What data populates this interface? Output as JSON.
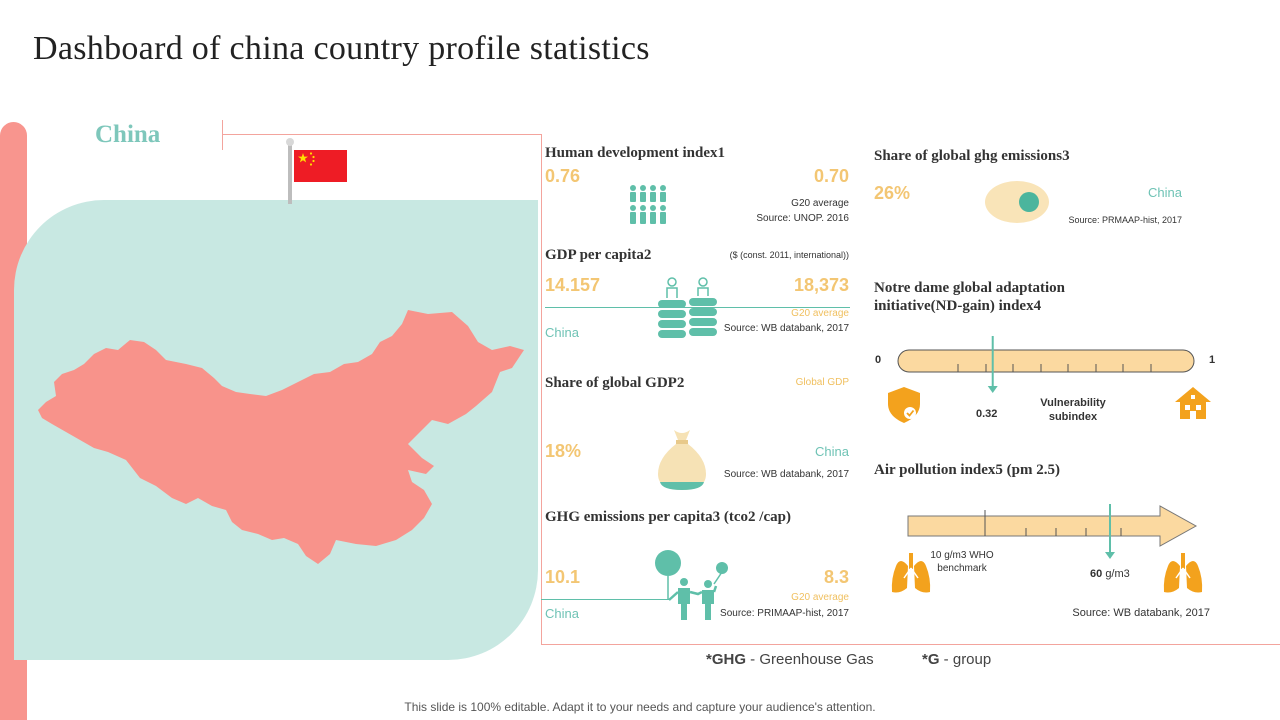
{
  "title": "Dashboard of china country profile statistics",
  "country": "China",
  "hdi": {
    "title": "Human development index1",
    "value": "0.76",
    "g20_value": "0.70",
    "g20_label": "G20 average",
    "source": "Source: UNOP.  2016"
  },
  "gdp_per_capita": {
    "title": "GDP per capita2",
    "unit_note": "($ (const. 2011, international))",
    "value": "14.157",
    "g20_value": "18,373",
    "country_label": "China",
    "g20_label": "G20 average",
    "source": "Source: WB databank, 2017"
  },
  "share_gdp": {
    "title": "Share of global GDP2",
    "global_label": "Global GDP",
    "value": "18%",
    "country_label": "China",
    "source": "Source: WB databank, 2017"
  },
  "ghg_per_capita": {
    "title": "GHG emissions per capita3 (tco2 /cap)",
    "value": "10.1",
    "g20_value": "8.3",
    "country_label": "China",
    "g20_label": "G20 average",
    "source": "Source: PRIMAAP-hist, 2017"
  },
  "share_ghg": {
    "title": "Share of global ghg emissions3",
    "value": "26%",
    "country_label": "China",
    "source": "Source: PRMAAP-hist, 2017"
  },
  "nd_gain": {
    "title_line1": "Notre dame global adaptation",
    "title_line2": "initiative(ND-gain) index4",
    "min": "0",
    "max": "1",
    "marker_value": "0.32",
    "marker_fraction": 0.32,
    "sub_line1": "Vulnerability",
    "sub_line2": "subindex"
  },
  "air_pollution": {
    "title": "Air pollution index5 (pm 2.5)",
    "benchmark_line1": "10 g/m3 WHO",
    "benchmark_line2": "benchmark",
    "value": "60",
    "unit": "g/m3",
    "source": "Source: WB databank, 2017"
  },
  "legend": {
    "ghg_key": "*GHG",
    "ghg_text": " - Greenhouse  Gas",
    "g_key": "*G",
    "g_text": " - group"
  },
  "footer": "This slide is 100% editable. Adapt it to your needs and capture your audience's attention.",
  "colors": {
    "coral": "#f8958e",
    "teal": "#5fbfa9",
    "mint": "#c8e8e2",
    "yellow": "#f3c673",
    "orange": "#f0a020"
  }
}
